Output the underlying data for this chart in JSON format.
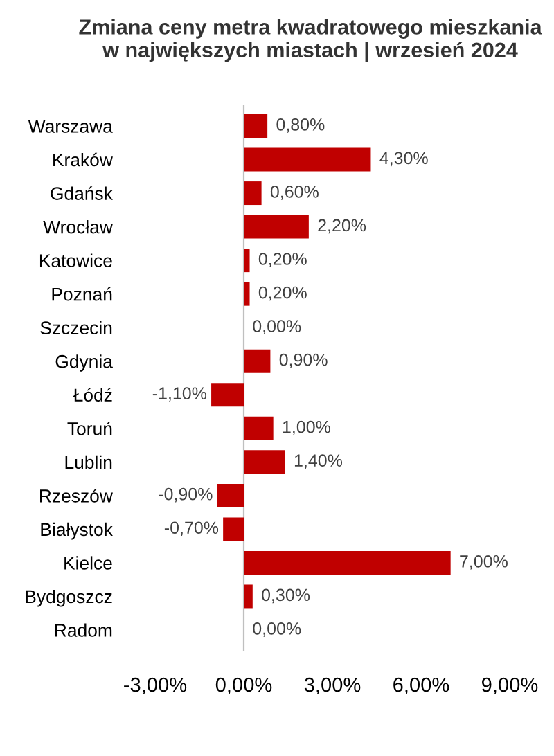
{
  "chart_data": {
    "type": "bar",
    "orientation": "horizontal",
    "title": "Zmiana ceny metra kwadratowego mieszkania\nw największych miastach | wrzesień 2024",
    "categories": [
      "Warszawa",
      "Kraków",
      "Gdańsk",
      "Wrocław",
      "Katowice",
      "Poznań",
      "Szczecin",
      "Gdynia",
      "Łódź",
      "Toruń",
      "Lublin",
      "Rzeszów",
      "Białystok",
      "Kielce",
      "Bydgoszcz",
      "Radom"
    ],
    "values": [
      0.8,
      4.3,
      0.6,
      2.2,
      0.2,
      0.2,
      0.0,
      0.9,
      -1.1,
      1.0,
      1.4,
      -0.9,
      -0.7,
      7.0,
      0.3,
      0.0
    ],
    "value_labels": [
      "0,80%",
      "4,30%",
      "0,60%",
      "2,20%",
      "0,20%",
      "0,20%",
      "0,00%",
      "0,90%",
      "-1,10%",
      "1,00%",
      "1,40%",
      "-0,90%",
      "-0,70%",
      "7,00%",
      "0,30%",
      "0,00%"
    ],
    "color": "#c00000",
    "xlim": [
      -3,
      9
    ],
    "xticks": [
      {
        "value": -3,
        "label": "-3,00%"
      },
      {
        "value": 0,
        "label": "0,00%"
      },
      {
        "value": 3,
        "label": "3,00%"
      },
      {
        "value": 6,
        "label": "6,00%"
      },
      {
        "value": 9,
        "label": "9,00%"
      }
    ],
    "legend": false
  }
}
